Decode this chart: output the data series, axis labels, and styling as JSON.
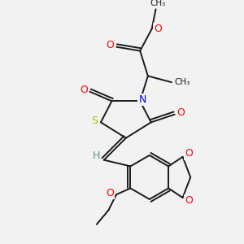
{
  "background_color": "#f2f2f2",
  "bond_color": "#1a1a1a",
  "atom_colors": {
    "O": "#ff0000",
    "N": "#0000ff",
    "S": "#b8b800",
    "H": "#4a9a9a",
    "C": "#1a1a1a"
  },
  "figsize": [
    3.0,
    3.0
  ],
  "dpi": 100
}
